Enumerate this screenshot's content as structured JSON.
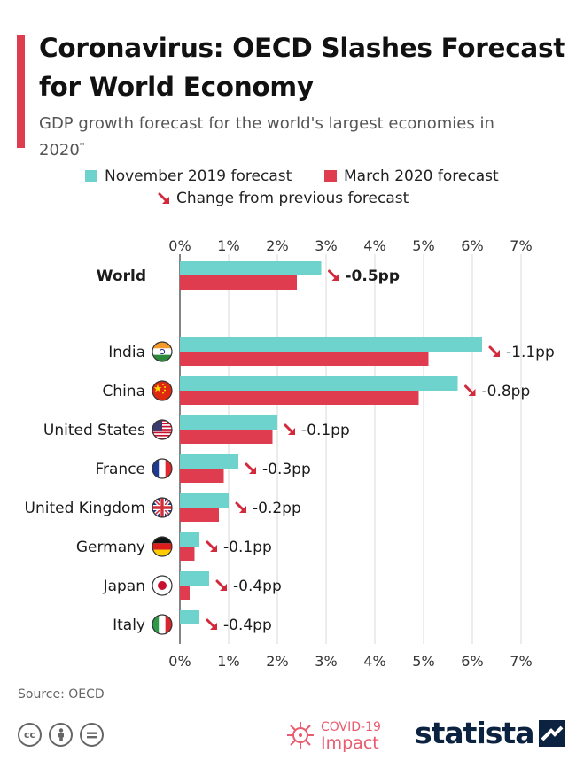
{
  "title": "Coronavirus: OECD Slashes Forecast for World Economy",
  "subtitle": "GDP growth forecast for the world's largest economies in 2020",
  "subtitle_mark": "*",
  "legend": {
    "nov": "November 2019 forecast",
    "mar": "March 2020 forecast",
    "change": "Change from previous forecast"
  },
  "colors": {
    "nov": "#6dd3cc",
    "mar": "#e03c50",
    "arrow": "#d22a3c",
    "accent": "#e03c50"
  },
  "chart_data": {
    "type": "bar",
    "orientation": "horizontal",
    "categories": [
      "World",
      "India",
      "China",
      "United States",
      "France",
      "United Kingdom",
      "Germany",
      "Japan",
      "Italy"
    ],
    "flags": [
      "",
      "india-flag-icon",
      "china-flag-icon",
      "us-flag-icon",
      "france-flag-icon",
      "uk-flag-icon",
      "germany-flag-icon",
      "japan-flag-icon",
      "italy-flag-icon"
    ],
    "series": [
      {
        "name": "November 2019 forecast",
        "values": [
          2.9,
          6.2,
          5.7,
          2.0,
          1.2,
          1.0,
          0.4,
          0.6,
          0.4
        ]
      },
      {
        "name": "March 2020 forecast",
        "values": [
          2.4,
          5.1,
          4.9,
          1.9,
          0.9,
          0.8,
          0.3,
          0.2,
          0.0
        ]
      }
    ],
    "change_labels": [
      "-0.5pp",
      "-1.1pp",
      "-0.8pp",
      "-0.1pp",
      "-0.3pp",
      "-0.2pp",
      "-0.1pp",
      "-0.4pp",
      "-0.4pp"
    ],
    "xlim": [
      0,
      7
    ],
    "ticks": [
      "0%",
      "1%",
      "2%",
      "3%",
      "4%",
      "5%",
      "6%",
      "7%"
    ],
    "grid": true,
    "legend_position": "top"
  },
  "footer": {
    "source": "Source: OECD",
    "license_icons": [
      "cc-icon",
      "attribution-icon",
      "no-derivatives-icon"
    ],
    "covid_line1": "COVID-19",
    "covid_line2": "Impact",
    "brand": "statista"
  }
}
